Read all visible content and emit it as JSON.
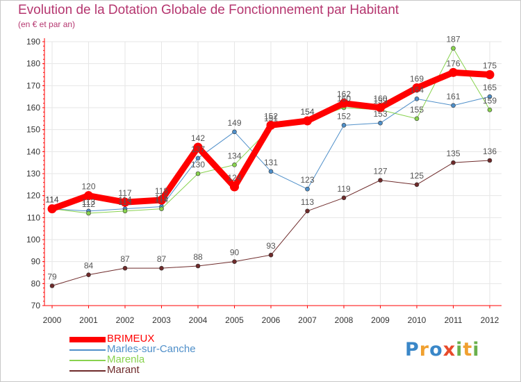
{
  "title": "Evolution de la Dotation Globale de Fonctionnement par Habitant",
  "subtitle": "(en € et par an)",
  "logo": {
    "letters": [
      "P",
      "r",
      "o",
      "x",
      "i",
      "t",
      "i"
    ],
    "colors": [
      "#3a87c8",
      "#f0a030",
      "#3a87c8",
      "#e84a2a",
      "#6ab04c",
      "#f0a030",
      "#6ab04c"
    ]
  },
  "colors": {
    "axis": "#ff0000",
    "grid": "#e6e6e6",
    "tick_text": "#333333",
    "label_text": "#555555",
    "title": "#b5366f"
  },
  "chart_data": {
    "type": "line",
    "title": "Evolution de la Dotation Globale de Fonctionnement par Habitant",
    "subtitle": "(en € et par an)",
    "xlabel": "",
    "ylabel": "",
    "x": [
      "2000",
      "2001",
      "2002",
      "2003",
      "2004",
      "2005",
      "2006",
      "2007",
      "2008",
      "2009",
      "2010",
      "2011",
      "2012"
    ],
    "ylim": [
      70,
      190
    ],
    "yticks": [
      70,
      80,
      90,
      100,
      110,
      120,
      130,
      140,
      150,
      160,
      170,
      180,
      190
    ],
    "grid": true,
    "legend_position": "bottom-left",
    "series": [
      {
        "name": "BRIMEUX",
        "color": "#ff0000",
        "values": [
          114,
          120,
          117,
          118,
          142,
          124,
          152,
          154,
          162,
          160,
          169,
          176,
          175
        ]
      },
      {
        "name": "Marles-sur-Canche",
        "color": "#4f8fc9",
        "values": [
          114,
          113,
          114,
          115,
          137,
          149,
          131,
          123,
          152,
          153,
          164,
          161,
          165
        ]
      },
      {
        "name": "Marenla",
        "color": "#88d24e",
        "values": [
          114,
          112,
          113,
          114,
          130,
          134,
          151,
          154,
          160,
          159,
          155,
          187,
          159
        ]
      },
      {
        "name": "Marant",
        "color": "#6e2a2a",
        "values": [
          79,
          84,
          87,
          87,
          88,
          90,
          93,
          113,
          119,
          127,
          125,
          135,
          136
        ]
      }
    ]
  }
}
